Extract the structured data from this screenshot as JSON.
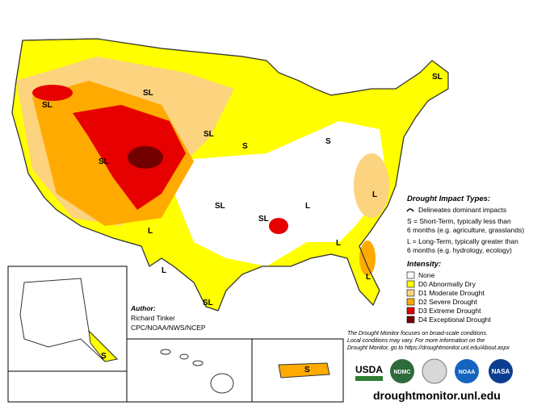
{
  "header": {
    "url": "droughtmonitor.unl.edu"
  },
  "impact_types": {
    "title": "Drought Impact Types:",
    "delineates": "Delineates dominant impacts",
    "short_term": [
      "S = Short-Term, typically less than",
      "6 months (e.g. agriculture, grasslands)"
    ],
    "long_term": [
      "L = Long-Term, typically greater than",
      "6 months (e.g. hydrology, ecology)"
    ]
  },
  "intensity": {
    "title": "Intensity:",
    "items": [
      {
        "label": "None",
        "color": "#ffffff"
      },
      {
        "label": "D0 Abnormally Dry",
        "color": "#ffff00"
      },
      {
        "label": "D1 Moderate Drought",
        "color": "#fcd37f"
      },
      {
        "label": "D2 Severe Drought",
        "color": "#ffaa00"
      },
      {
        "label": "D3 Extreme Drought",
        "color": "#e60000"
      },
      {
        "label": "D4 Exceptional Drought",
        "color": "#730000"
      }
    ]
  },
  "author": {
    "title": "Author:",
    "name": "Richard Tinker",
    "org": "CPC/NOAA/NWS/NCEP"
  },
  "note": [
    "The Drought Monitor focuses on broad-scale conditions.",
    "Local conditions may vary. For more information on the",
    "Drought Monitor, go to https://droughtmonitor.unl.edu/About.aspx"
  ],
  "logos": [
    "USDA",
    "NDMC",
    "NOAA",
    "NASA"
  ],
  "map_labels": [
    "SL",
    "SL",
    "SL",
    "SL",
    "S",
    "S",
    "SL",
    "SL",
    "SL",
    "L",
    "L",
    "L",
    "L",
    "L",
    "L",
    "SL",
    "S",
    "S"
  ]
}
